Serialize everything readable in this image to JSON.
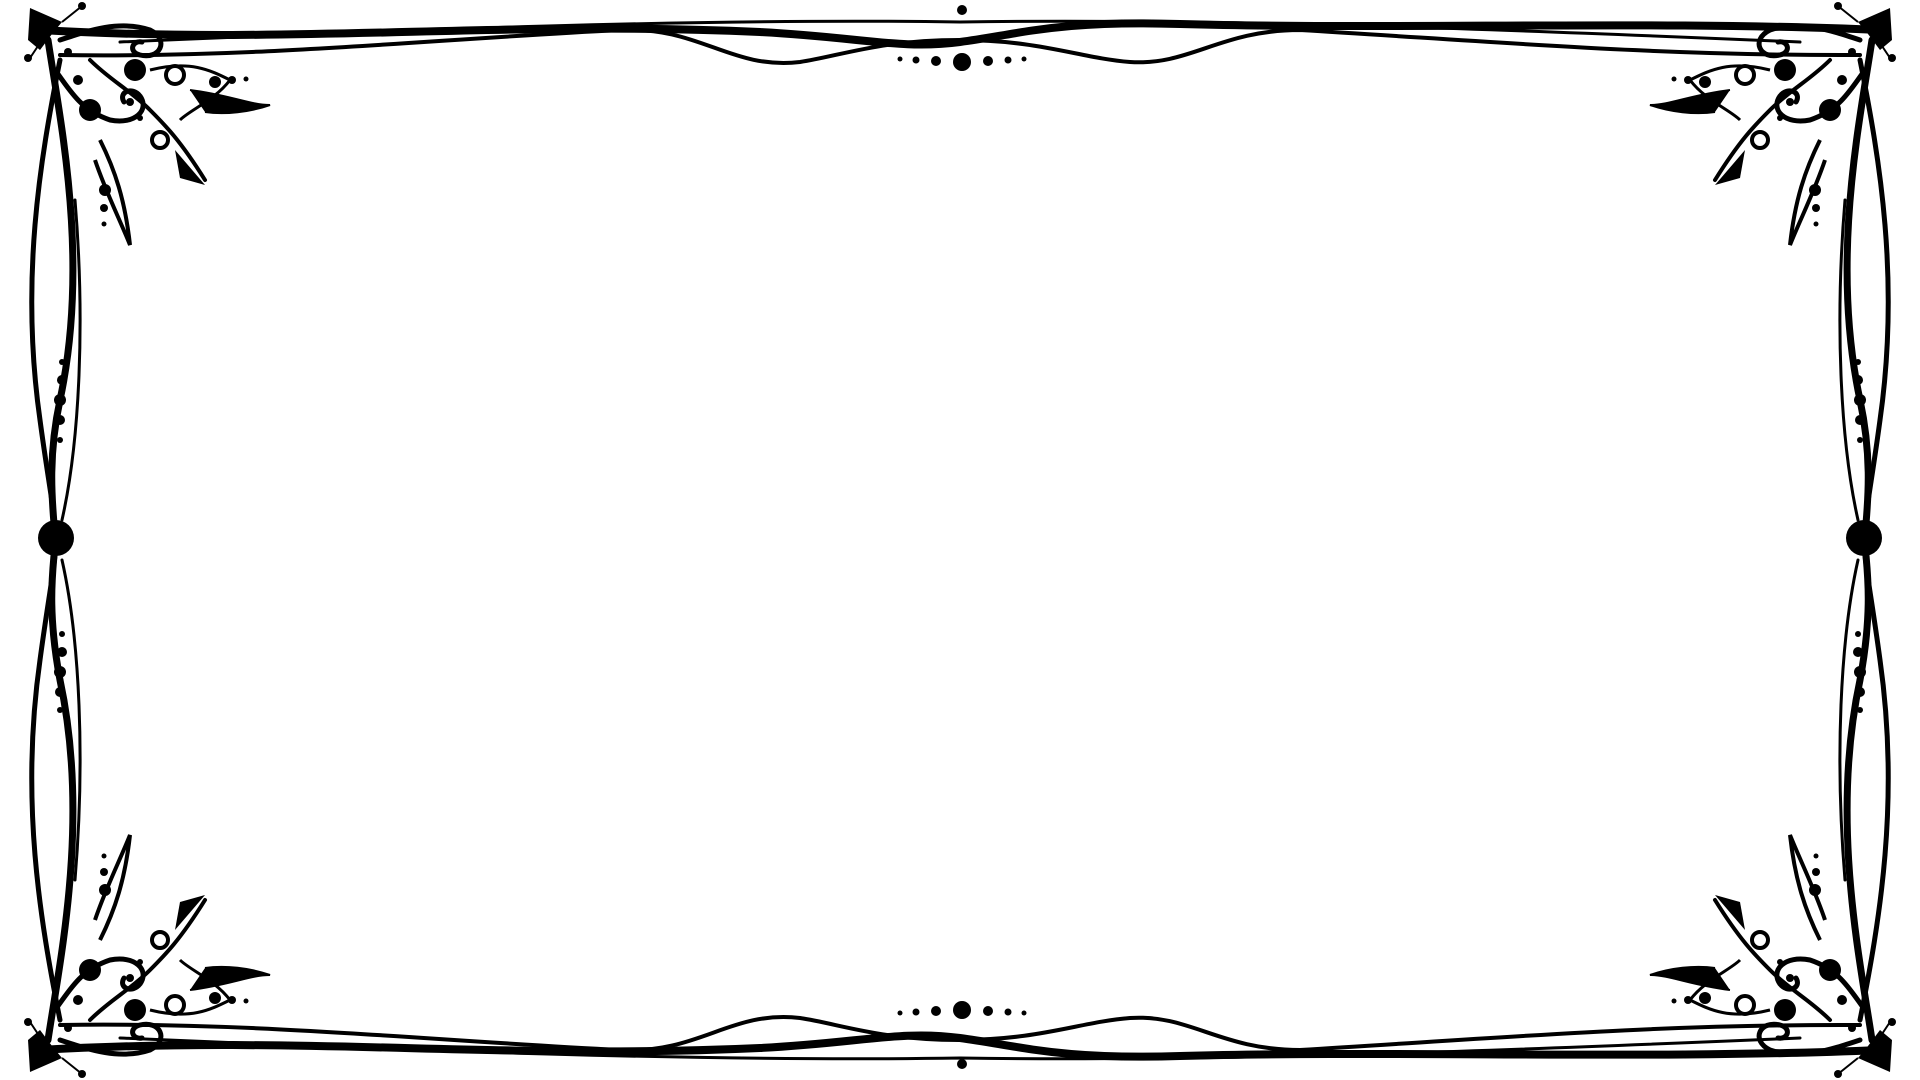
{
  "background_color": "#ffffff",
  "ink_color": "#000000",
  "content": {
    "text": ""
  }
}
